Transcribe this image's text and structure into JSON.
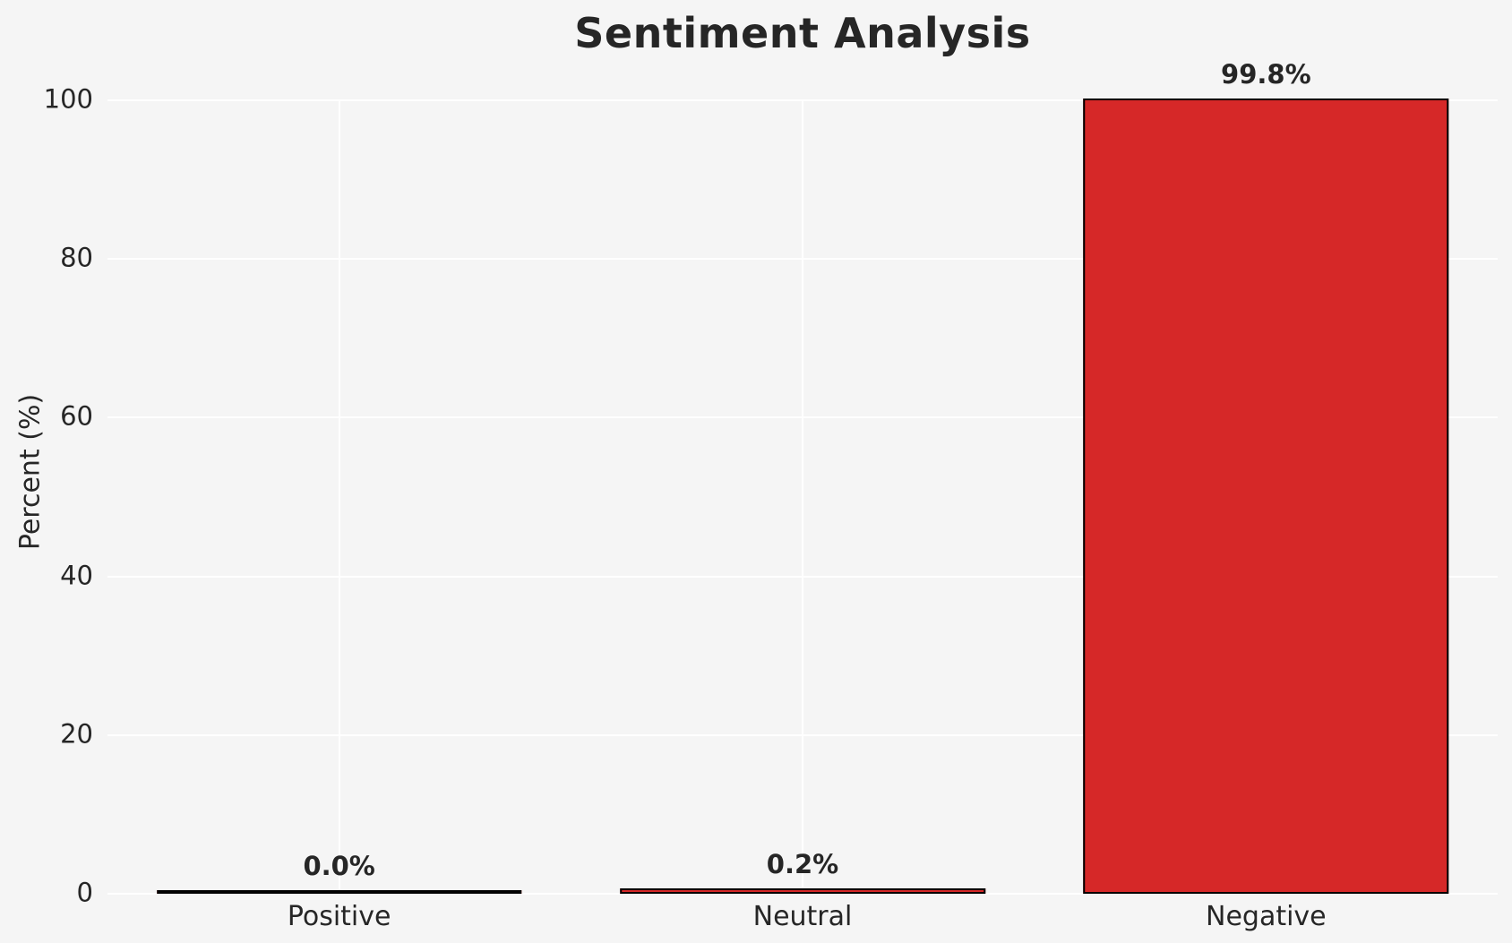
{
  "chart_data": {
    "type": "bar",
    "title": "Sentiment Analysis",
    "xlabel": "",
    "ylabel": "Percent (%)",
    "categories": [
      "Positive",
      "Neutral",
      "Negative"
    ],
    "values": [
      0.0,
      0.2,
      99.8
    ],
    "value_labels": [
      "0.0%",
      "0.2%",
      "99.8%"
    ],
    "ylim": [
      0,
      100
    ],
    "yticks": [
      0,
      20,
      40,
      60,
      80,
      100
    ],
    "grid": true,
    "legend": false,
    "bar_color": "#d62828",
    "bar_edge_color": "#000000",
    "background_color": "#f5f5f5",
    "gridline_color": "#ffffff",
    "text_color": "#262626"
  }
}
